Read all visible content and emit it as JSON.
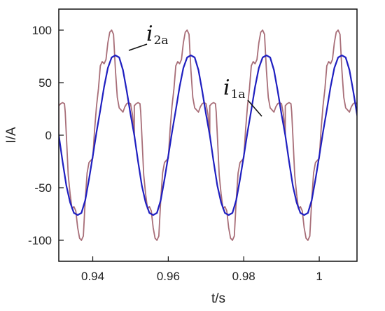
{
  "chart_data": {
    "type": "line",
    "xlabel": "t/s",
    "ylabel": "I/A",
    "xlim": [
      0.931,
      1.01
    ],
    "ylim": [
      -120,
      120
    ],
    "x_ticks": [
      0.94,
      0.96,
      0.98,
      1.0
    ],
    "x_tick_labels": [
      "0.94",
      "0.96",
      "0.98",
      "1"
    ],
    "y_ticks": [
      100,
      50,
      0,
      -50,
      -100
    ],
    "y_tick_labels": [
      "100",
      "50",
      "0",
      "-50",
      "-100"
    ],
    "grid": false,
    "legend": "none",
    "period_s": 0.02,
    "series": [
      {
        "name": "i2a",
        "color": "#a86e78",
        "x": [
          0.931,
          0.9315,
          0.932,
          0.9325,
          0.9327,
          0.933,
          0.9335,
          0.934,
          0.9345,
          0.935,
          0.9355,
          0.936,
          0.9365,
          0.937,
          0.9375,
          0.938,
          0.9385,
          0.939,
          0.9395,
          0.94,
          0.9405,
          0.941,
          0.9415,
          0.942,
          0.9425,
          0.943,
          0.9435,
          0.944,
          0.9445,
          0.945,
          0.9455,
          0.946,
          0.9465,
          0.947,
          0.9475,
          0.948,
          0.9485,
          0.949,
          0.9495,
          0.95,
          0.9505,
          0.951
        ],
        "values": [
          28,
          30,
          31,
          30,
          22,
          0,
          -38,
          -56,
          -70,
          -68,
          -72,
          -88,
          -98,
          -100,
          -96,
          -62,
          -36,
          -26,
          -24,
          -22,
          6,
          28,
          44,
          66,
          70,
          68,
          72,
          88,
          98,
          100,
          96,
          62,
          36,
          26,
          24,
          22,
          27,
          30,
          31,
          30,
          20,
          0
        ]
      },
      {
        "name": "i1a",
        "color": "#1f1fc0",
        "x": [
          0.931,
          0.932,
          0.933,
          0.934,
          0.935,
          0.936,
          0.937,
          0.938,
          0.939,
          0.94,
          0.941,
          0.942,
          0.943,
          0.944,
          0.945,
          0.946,
          0.947,
          0.948,
          0.949,
          0.95,
          0.951
        ],
        "values": [
          0,
          -25,
          -48,
          -64,
          -74,
          -76,
          -74,
          -62,
          -42,
          -20,
          3,
          24,
          46,
          64,
          74,
          76,
          74,
          62,
          42,
          20,
          0
        ]
      }
    ],
    "annotations": [
      {
        "text": "i",
        "subscript": "2a"
      },
      {
        "text": "i",
        "subscript": "1a"
      }
    ]
  }
}
